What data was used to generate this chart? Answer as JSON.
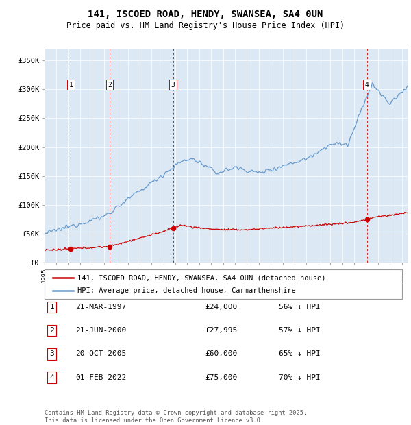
{
  "title": "141, ISCOED ROAD, HENDY, SWANSEA, SA4 0UN",
  "subtitle": "Price paid vs. HM Land Registry's House Price Index (HPI)",
  "plot_bg_color": "#dce9f5",
  "ylim": [
    0,
    370000
  ],
  "yticks": [
    0,
    50000,
    100000,
    150000,
    200000,
    250000,
    300000,
    350000
  ],
  "ytick_labels": [
    "£0",
    "£50K",
    "£100K",
    "£150K",
    "£200K",
    "£250K",
    "£300K",
    "£350K"
  ],
  "transactions": [
    {
      "num": 1,
      "date_str": "21-MAR-1997",
      "date_x": 1997.22,
      "price": 24000
    },
    {
      "num": 2,
      "date_str": "21-JUN-2000",
      "date_x": 2000.47,
      "price": 27995
    },
    {
      "num": 3,
      "date_str": "20-OCT-2005",
      "date_x": 2005.8,
      "price": 60000
    },
    {
      "num": 4,
      "date_str": "01-FEB-2022",
      "date_x": 2022.08,
      "price": 75000
    }
  ],
  "red_line_color": "#cc0000",
  "blue_line_color": "#6699cc",
  "dashed_line_color": "#cc0000",
  "footnote": "Contains HM Land Registry data © Crown copyright and database right 2025.\nThis data is licensed under the Open Government Licence v3.0.",
  "legend_label_red": "141, ISCOED ROAD, HENDY, SWANSEA, SA4 0UN (detached house)",
  "legend_label_blue": "HPI: Average price, detached house, Carmarthenshire",
  "table_rows": [
    [
      "1",
      "21-MAR-1997",
      "£24,000",
      "56% ↓ HPI"
    ],
    [
      "2",
      "21-JUN-2000",
      "£27,995",
      "57% ↓ HPI"
    ],
    [
      "3",
      "20-OCT-2005",
      "£60,000",
      "65% ↓ HPI"
    ],
    [
      "4",
      "01-FEB-2022",
      "£75,000",
      "70% ↓ HPI"
    ]
  ],
  "xmin": 1995.0,
  "xmax": 2025.5
}
